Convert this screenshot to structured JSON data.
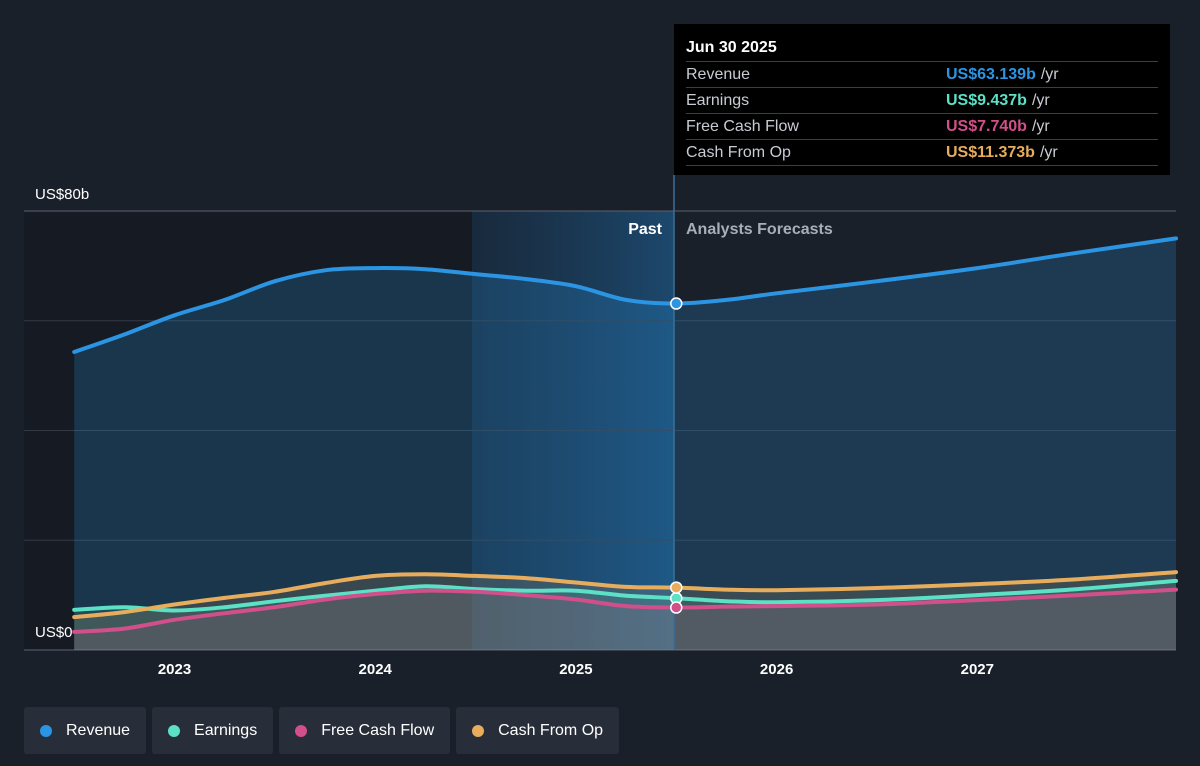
{
  "chart_data": {
    "type": "area",
    "y_axis": {
      "top_label": "US$80b",
      "bottom_label": "US$0",
      "ylim": [
        0,
        80
      ],
      "gridlines": [
        0,
        20,
        40,
        60,
        80
      ]
    },
    "x_axis": {
      "ticks": [
        "2023",
        "2024",
        "2025",
        "2026",
        "2027"
      ],
      "tick_values": [
        2023,
        2024,
        2025,
        2026,
        2027
      ],
      "xlim": [
        2022.25,
        2027.99
      ]
    },
    "divider": {
      "x": 2025.5,
      "past_label": "Past",
      "forecast_label": "Analysts Forecasts"
    },
    "series": [
      {
        "name": "Revenue",
        "color": "#2b95e3",
        "x": [
          2022.5,
          2022.75,
          2023.0,
          2023.25,
          2023.5,
          2023.75,
          2024.0,
          2024.25,
          2024.5,
          2024.75,
          2025.0,
          2025.25,
          2025.5,
          2025.75,
          2026.0,
          2026.5,
          2027.0,
          2027.5,
          2028.0
        ],
        "y": [
          54.3,
          57.5,
          61.0,
          63.8,
          67.2,
          69.2,
          69.6,
          69.4,
          68.5,
          67.6,
          66.3,
          63.8,
          63.139,
          63.8,
          65.0,
          67.2,
          69.6,
          72.4,
          75.0
        ]
      },
      {
        "name": "Earnings",
        "color": "#5ce0c6",
        "x": [
          2022.5,
          2022.75,
          2023.0,
          2023.25,
          2023.5,
          2023.75,
          2024.0,
          2024.25,
          2024.5,
          2024.75,
          2025.0,
          2025.25,
          2025.5,
          2025.75,
          2026.0,
          2026.5,
          2027.0,
          2027.5,
          2028.0
        ],
        "y": [
          7.3,
          7.8,
          7.2,
          7.8,
          8.9,
          9.9,
          10.8,
          11.6,
          11.1,
          10.8,
          10.8,
          9.9,
          9.437,
          8.9,
          8.7,
          9.1,
          10.0,
          11.1,
          12.6
        ]
      },
      {
        "name": "Free Cash Flow",
        "color": "#d14f8a",
        "x": [
          2022.5,
          2022.75,
          2023.0,
          2023.25,
          2023.5,
          2023.75,
          2024.0,
          2024.25,
          2024.5,
          2024.75,
          2025.0,
          2025.25,
          2025.5,
          2025.75,
          2026.0,
          2026.5,
          2027.0,
          2027.5,
          2028.0
        ],
        "y": [
          3.3,
          3.9,
          5.5,
          6.7,
          7.8,
          9.2,
          10.2,
          10.8,
          10.6,
          10.0,
          9.2,
          8.0,
          7.74,
          7.9,
          8.0,
          8.3,
          9.1,
          10.0,
          11.0
        ]
      },
      {
        "name": "Cash From Op",
        "color": "#e8ad5c",
        "x": [
          2022.5,
          2022.75,
          2023.0,
          2023.25,
          2023.5,
          2023.75,
          2024.0,
          2024.25,
          2024.5,
          2024.75,
          2025.0,
          2025.25,
          2025.5,
          2025.75,
          2026.0,
          2026.5,
          2027.0,
          2027.5,
          2028.0
        ],
        "y": [
          6.0,
          6.9,
          8.3,
          9.5,
          10.6,
          12.2,
          13.5,
          13.8,
          13.5,
          13.1,
          12.3,
          11.5,
          11.373,
          11.0,
          10.9,
          11.3,
          12.0,
          12.9,
          14.2
        ]
      }
    ]
  },
  "tooltip": {
    "date": "Jun 30 2025",
    "unit": "/yr",
    "rows": [
      {
        "label": "Revenue",
        "value": "US$63.139b",
        "color": "#2b95e3"
      },
      {
        "label": "Earnings",
        "value": "US$9.437b",
        "color": "#5ce0c6"
      },
      {
        "label": "Free Cash Flow",
        "value": "US$7.740b",
        "color": "#d14f8a"
      },
      {
        "label": "Cash From Op",
        "value": "US$11.373b",
        "color": "#e8ad5c"
      }
    ]
  },
  "legend": [
    {
      "label": "Revenue",
      "color": "#2b95e3"
    },
    {
      "label": "Earnings",
      "color": "#5ce0c6"
    },
    {
      "label": "Free Cash Flow",
      "color": "#d14f8a"
    },
    {
      "label": "Cash From Op",
      "color": "#e8ad5c"
    }
  ]
}
